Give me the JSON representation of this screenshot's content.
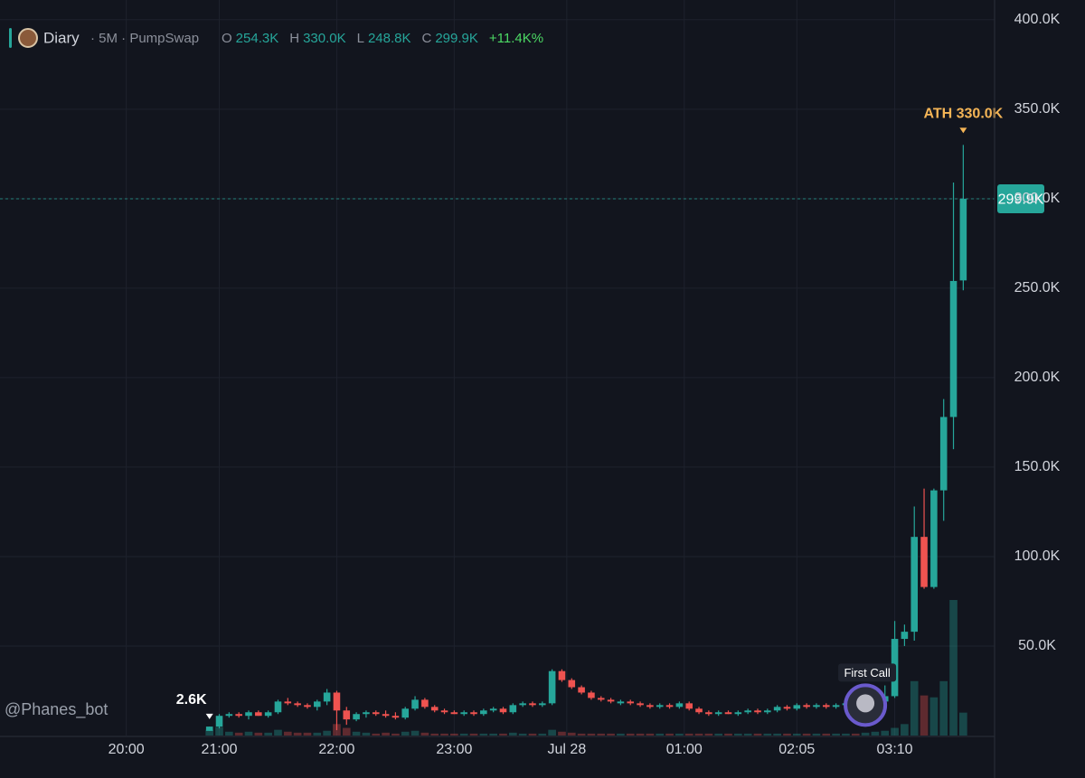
{
  "chart_data": {
    "type": "candlestick",
    "legend": {
      "symbol": "Diary",
      "interval": "· 5M · PumpSwap",
      "ohlc": [
        {
          "name": "O",
          "label": "254.3K"
        },
        {
          "name": "H",
          "label": "330.0K"
        },
        {
          "name": "L",
          "label": "248.8K"
        },
        {
          "name": "C",
          "label": "299.9K"
        }
      ],
      "change": "+11.4K%"
    },
    "watermark": "@Phanes_bot",
    "up_color": "#26a69a",
    "down_color": "#ef5350",
    "grid": true,
    "open": [
      2.6,
      5,
      11,
      12,
      11,
      13,
      11,
      13,
      19,
      18,
      17,
      16,
      19,
      24,
      14,
      9,
      12,
      13,
      12,
      11,
      10,
      15,
      20,
      16,
      14,
      13,
      12,
      13,
      12,
      14,
      15,
      13,
      17,
      18,
      17,
      18,
      36,
      31,
      27,
      24,
      21,
      20,
      18,
      19,
      18,
      17,
      16,
      17,
      16,
      18,
      15,
      13,
      12,
      13,
      12,
      13,
      14,
      13,
      14,
      16,
      15,
      17,
      16,
      17,
      16,
      17,
      18,
      17,
      18,
      19,
      22,
      54,
      58,
      111,
      83,
      137,
      178,
      254.3
    ],
    "high": [
      5,
      12,
      13,
      13,
      14,
      14,
      14,
      20,
      21,
      19,
      18,
      20,
      26,
      25,
      16,
      13,
      14,
      14,
      14,
      13,
      16,
      22,
      21,
      17,
      15,
      14,
      14,
      14,
      15,
      16,
      16,
      18,
      19,
      19,
      19,
      37,
      37,
      32,
      28,
      25,
      22,
      21,
      20,
      20,
      19,
      18,
      18,
      18,
      19,
      19,
      16,
      14,
      14,
      14,
      14,
      15,
      15,
      15,
      17,
      17,
      18,
      18,
      18,
      18,
      18,
      19,
      19,
      19,
      20,
      28,
      64,
      62,
      128,
      138,
      138,
      188,
      309,
      330
    ],
    "low": [
      2.6,
      4,
      10,
      10,
      9,
      11,
      10,
      12,
      17,
      16,
      15,
      14,
      17,
      3,
      6,
      8,
      10,
      11,
      10,
      9,
      9,
      14,
      15,
      13,
      12,
      12,
      11,
      11,
      11,
      13,
      12,
      12,
      16,
      16,
      16,
      17,
      30,
      26,
      23,
      20,
      19,
      18,
      17,
      17,
      16,
      15,
      15,
      15,
      15,
      14,
      12,
      11,
      11,
      12,
      11,
      12,
      12,
      12,
      13,
      14,
      14,
      15,
      15,
      15,
      15,
      16,
      16,
      16,
      17,
      18,
      21,
      50,
      53,
      82,
      82,
      120,
      160,
      248.8
    ],
    "close": [
      5,
      11,
      12,
      11,
      13,
      11,
      13,
      19,
      18,
      17,
      16,
      19,
      24,
      14,
      9,
      12,
      13,
      12,
      11,
      10,
      15,
      20,
      16,
      14,
      13,
      12,
      13,
      12,
      14,
      15,
      13,
      17,
      18,
      17,
      18,
      36,
      31,
      27,
      24,
      21,
      20,
      19,
      19,
      18,
      17,
      16,
      17,
      16,
      18,
      15,
      13,
      12,
      13,
      12,
      13,
      14,
      13,
      14,
      16,
      15,
      17,
      16,
      17,
      16,
      17,
      18,
      17,
      18,
      19,
      22,
      54,
      58,
      111,
      83,
      137,
      178,
      254,
      299.9
    ],
    "volume": [
      6,
      9,
      4,
      3,
      4,
      3,
      3,
      6,
      4,
      3,
      3,
      3,
      5,
      12,
      8,
      4,
      3,
      2,
      3,
      2,
      4,
      5,
      3,
      2,
      2,
      2,
      2,
      2,
      2,
      2,
      2,
      3,
      2,
      2,
      2,
      6,
      4,
      3,
      2,
      2,
      2,
      2,
      2,
      2,
      2,
      2,
      2,
      2,
      2,
      2,
      2,
      2,
      2,
      2,
      2,
      2,
      2,
      2,
      2,
      2,
      2,
      2,
      2,
      2,
      2,
      2,
      2,
      3,
      4,
      5,
      8,
      12,
      57,
      42,
      40,
      57,
      142,
      24
    ],
    "xlim": [
      -21.4,
      80.2
    ],
    "xticks": [
      {
        "value": -8.5,
        "label": "20:00"
      },
      {
        "value": 1,
        "label": "21:00"
      },
      {
        "value": 13,
        "label": "22:00"
      },
      {
        "value": 25,
        "label": "23:00"
      },
      {
        "value": 36.5,
        "label": "Jul 28"
      },
      {
        "value": 48.5,
        "label": "01:00"
      },
      {
        "value": 60,
        "label": "02:05"
      },
      {
        "value": 70,
        "label": "03:10"
      }
    ],
    "ylim": [
      0,
      411
    ],
    "yticks": [
      {
        "value": 50,
        "label": "50.0K"
      },
      {
        "value": 100,
        "label": "100.0K"
      },
      {
        "value": 150,
        "label": "150.0K"
      },
      {
        "value": 200,
        "label": "200.0K"
      },
      {
        "value": 250,
        "label": "250.0K"
      },
      {
        "value": 300,
        "label": "300.0K"
      },
      {
        "value": 350,
        "label": "350.0K"
      },
      {
        "value": 400,
        "label": "400.0K"
      }
    ],
    "current_price": {
      "value": 299.9,
      "label": "299.9K"
    },
    "annotations": [
      {
        "index": 77,
        "value": 330,
        "label": "ATH 330.0K",
        "color": "#f5b556"
      },
      {
        "index": 0,
        "value": 2.6,
        "label": "2.6K",
        "color": "#ffffff"
      },
      {
        "index": 67,
        "value": 17,
        "label": "First Call",
        "color": "#ffffff"
      }
    ]
  }
}
